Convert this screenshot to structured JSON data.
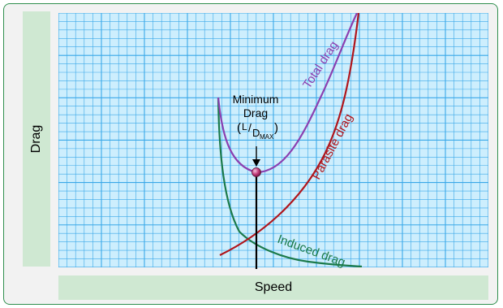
{
  "axes": {
    "y_label": "Drag",
    "x_label": "Speed"
  },
  "curves": {
    "total_drag_label": "Total drag",
    "parasite_drag_label": "Parasite drag",
    "induced_drag_label": "Induced drag"
  },
  "annotation": {
    "line1": "Minimum",
    "line2": "Drag",
    "ratio_paren_open": "(",
    "ratio_L": "L",
    "ratio_slash": "/",
    "ratio_D": "D",
    "ratio_sub": "MAX",
    "ratio_paren_close": ")"
  },
  "colors": {
    "frame_border": "#2f8f4e",
    "label_box": "#cfe8d2",
    "grid_bg": "#cdeefd",
    "grid_line": "#3aa8e8",
    "total_drag": "#8b3fb0",
    "parasite_drag": "#b0151b",
    "induced_drag": "#1b7a4a",
    "min_marker": "#c23a7a"
  }
}
